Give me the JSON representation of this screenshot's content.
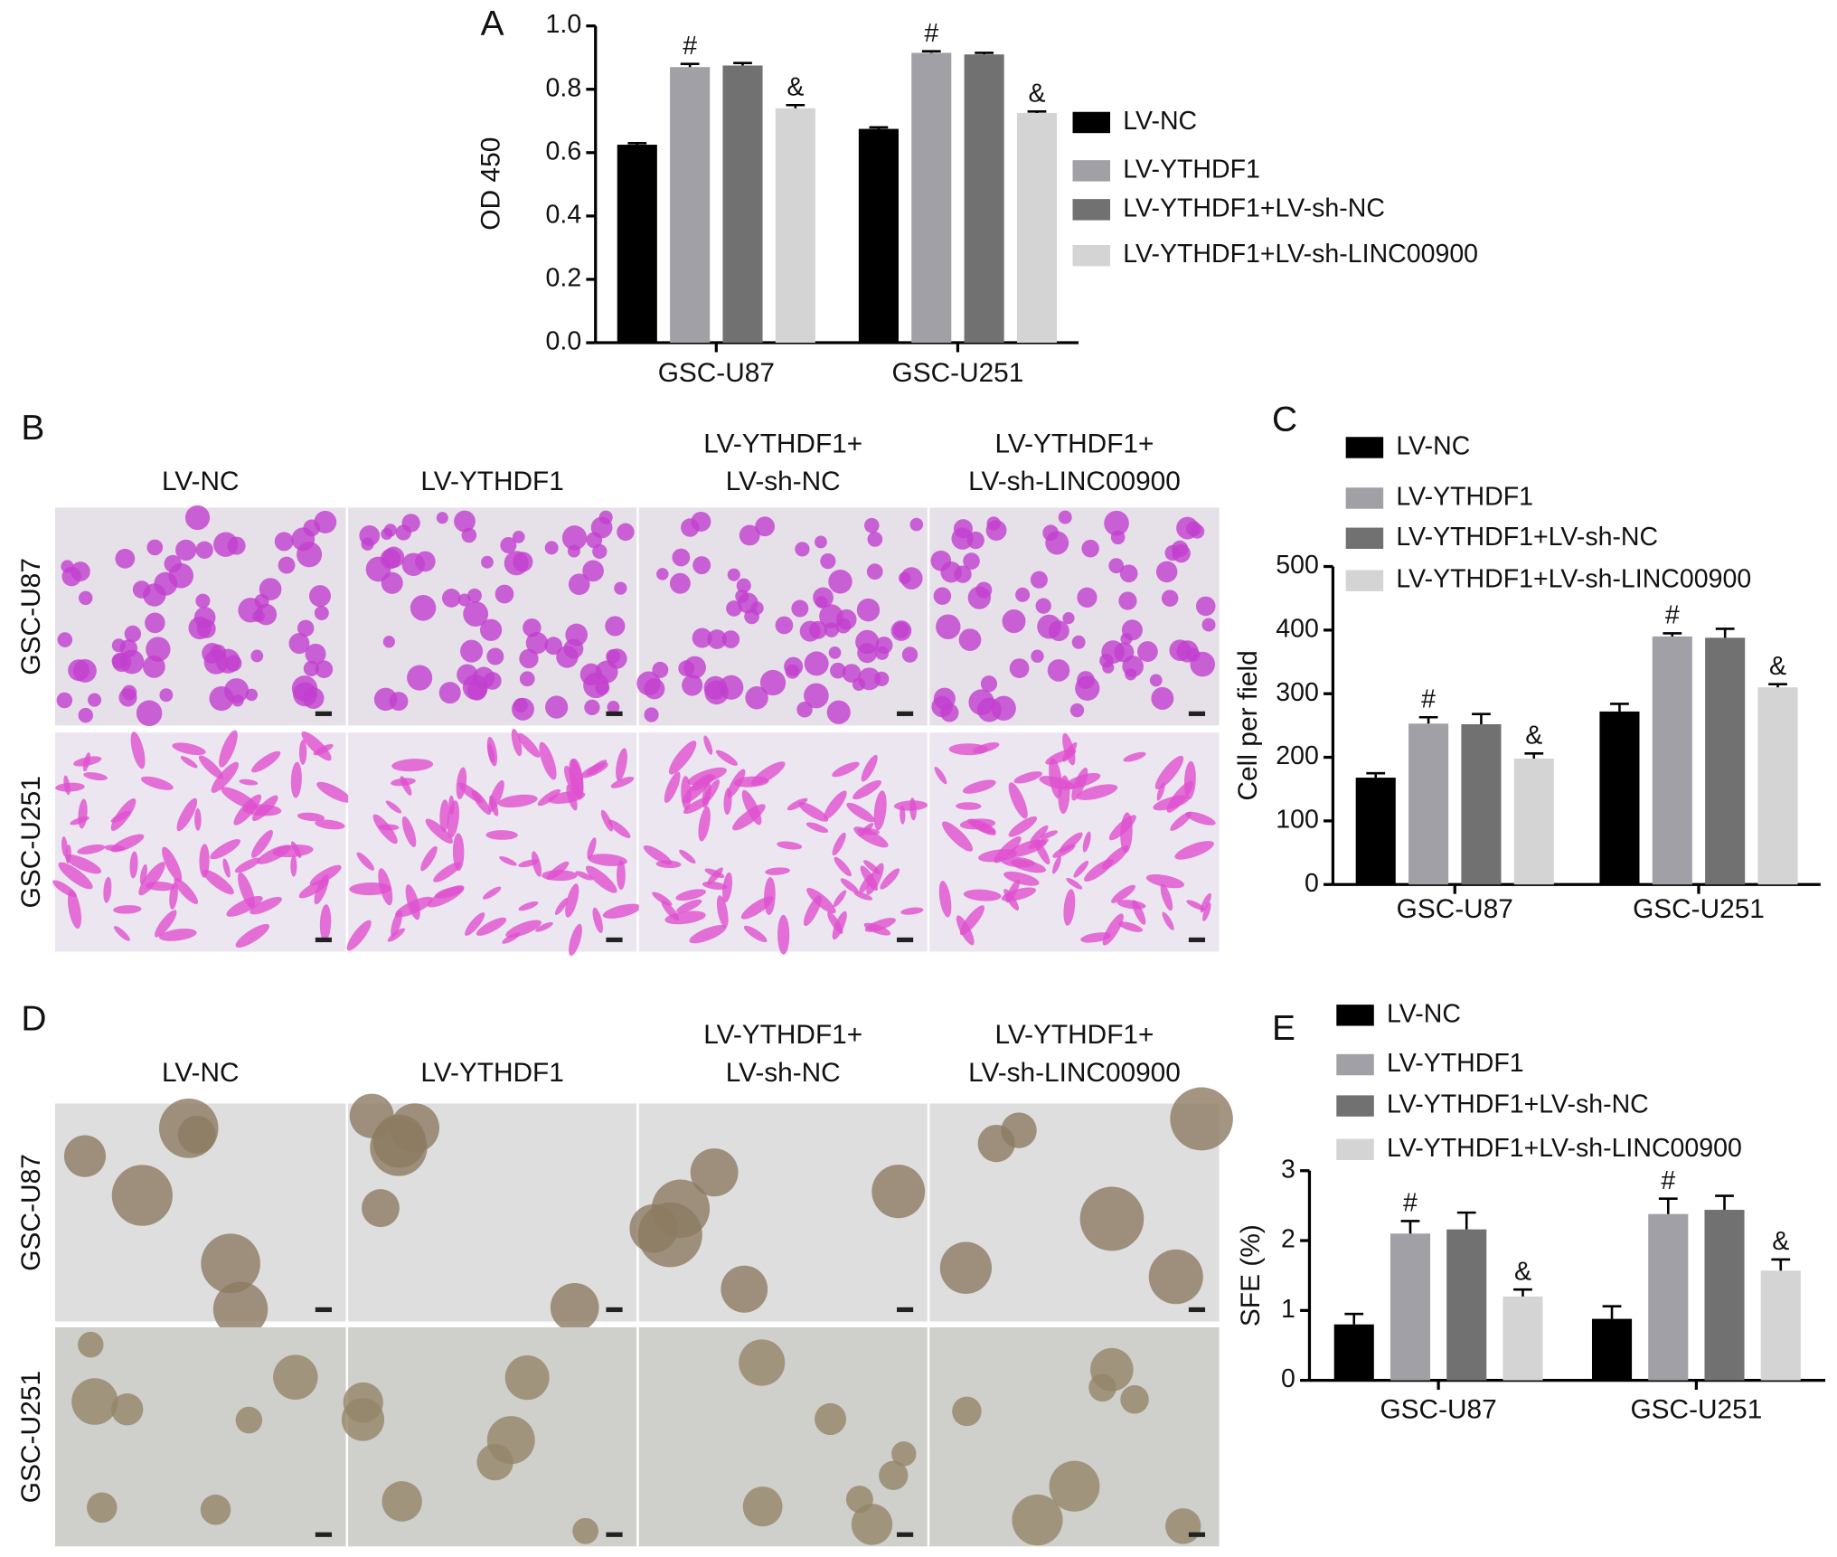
{
  "chart_data": [
    {
      "type": "bar",
      "panel": "A",
      "y_label": "OD 450",
      "categories": [
        "GSC-U87",
        "GSC-U251"
      ],
      "ylim": [
        0,
        1.0
      ],
      "yticks": [
        {
          "value": 0,
          "label": "0.0"
        },
        0.2,
        0.4,
        0.6,
        0.8,
        {
          "value": 1.0,
          "label": "1.0"
        }
      ],
      "series": [
        {
          "name": "LV-NC",
          "color": "#000000",
          "values": [
            0.625,
            0.675
          ],
          "errors": [
            0.005,
            0.005
          ]
        },
        {
          "name": "LV-YTHDF1",
          "color": "#a0a0a6",
          "values": [
            0.87,
            0.915
          ],
          "errors": [
            0.01,
            0.005
          ],
          "marks": [
            "#",
            "#"
          ]
        },
        {
          "name": "LV-YTHDF1+LV-sh-NC",
          "color": "#717171",
          "values": [
            0.875,
            0.91
          ],
          "errors": [
            0.008,
            0.005
          ]
        },
        {
          "name": "LV-YTHDF1+LV-sh-LINC00900",
          "color": "#d4d4d4",
          "values": [
            0.74,
            0.725
          ],
          "errors": [
            0.01,
            0.005
          ],
          "marks": [
            "&",
            "&"
          ]
        }
      ]
    },
    {
      "type": "bar",
      "panel": "C",
      "y_label": "Cell per field",
      "categories": [
        "GSC-U87",
        "GSC-U251"
      ],
      "ylim": [
        0,
        500
      ],
      "yticks": [
        0,
        100,
        200,
        300,
        400,
        500
      ],
      "series": [
        {
          "name": "LV-NC",
          "color": "#000000",
          "values": [
            168,
            272
          ],
          "errors": [
            7,
            12
          ]
        },
        {
          "name": "LV-YTHDF1",
          "color": "#a0a0a6",
          "values": [
            253,
            390
          ],
          "errors": [
            10,
            5
          ],
          "marks": [
            "#",
            "#"
          ]
        },
        {
          "name": "LV-YTHDF1+LV-sh-NC",
          "color": "#717171",
          "values": [
            252,
            388
          ],
          "errors": [
            16,
            14
          ]
        },
        {
          "name": "LV-YTHDF1+LV-sh-LINC00900",
          "color": "#d4d4d4",
          "values": [
            198,
            310
          ],
          "errors": [
            8,
            5
          ],
          "marks": [
            "&",
            "&"
          ]
        }
      ]
    },
    {
      "type": "bar",
      "panel": "E",
      "y_label": "SFE (%)",
      "categories": [
        "GSC-U87",
        "GSC-U251"
      ],
      "ylim": [
        0,
        3
      ],
      "yticks": [
        0,
        1,
        2,
        3
      ],
      "series": [
        {
          "name": "LV-NC",
          "color": "#000000",
          "values": [
            0.8,
            0.88
          ],
          "errors": [
            0.15,
            0.18
          ]
        },
        {
          "name": "LV-YTHDF1",
          "color": "#a0a0a6",
          "values": [
            2.1,
            2.38
          ],
          "errors": [
            0.18,
            0.22
          ],
          "marks": [
            "#",
            "#"
          ]
        },
        {
          "name": "LV-YTHDF1+LV-sh-NC",
          "color": "#717171",
          "values": [
            2.16,
            2.44
          ],
          "errors": [
            0.24,
            0.2
          ]
        },
        {
          "name": "LV-YTHDF1+LV-sh-LINC00900",
          "color": "#d4d4d4",
          "values": [
            1.2,
            1.57
          ],
          "errors": [
            0.1,
            0.16
          ],
          "marks": [
            "&",
            "&"
          ]
        }
      ]
    }
  ],
  "image_panels": [
    {
      "panel": "B",
      "columns": [
        [
          "LV-NC"
        ],
        [
          "LV-YTHDF1"
        ],
        [
          "LV-YTHDF1+",
          "LV-sh-NC"
        ],
        [
          "LV-YTHDF1+",
          "LV-sh-LINC00900"
        ]
      ],
      "rows": [
        "GSC-U87",
        "GSC-U251"
      ]
    },
    {
      "panel": "D",
      "columns": [
        [
          "LV-NC"
        ],
        [
          "LV-YTHDF1"
        ],
        [
          "LV-YTHDF1+",
          "LV-sh-NC"
        ],
        [
          "LV-YTHDF1+",
          "LV-sh-LINC00900"
        ]
      ],
      "rows": [
        "GSC-U87",
        "GSC-U251"
      ]
    }
  ]
}
